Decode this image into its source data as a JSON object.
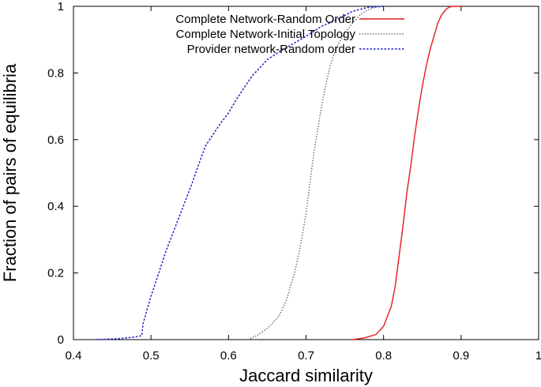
{
  "chart_data": {
    "type": "line",
    "xlabel": "Jaccard similarity",
    "ylabel": "Fraction of pairs of equilibria",
    "xlim": [
      0.4,
      1.0
    ],
    "ylim": [
      0,
      1
    ],
    "xticks": [
      0.4,
      0.5,
      0.6,
      0.7,
      0.8,
      0.9,
      1.0
    ],
    "yticks": [
      0,
      0.2,
      0.4,
      0.6,
      0.8,
      1.0
    ],
    "xtick_labels": [
      "0.4",
      "0.5",
      "0.6",
      "0.7",
      "0.8",
      "0.9",
      "1"
    ],
    "ytick_labels": [
      "0",
      "0.2",
      "0.4",
      "0.6",
      "0.8",
      "1"
    ],
    "grid": false,
    "legend_position": "top-right",
    "series": [
      {
        "name": "Complete Network-Random Order",
        "color": "#e41a1c",
        "style": "solid",
        "x": [
          0.76,
          0.775,
          0.79,
          0.8,
          0.81,
          0.815,
          0.82,
          0.825,
          0.83,
          0.835,
          0.84,
          0.845,
          0.85,
          0.855,
          0.86,
          0.865,
          0.87,
          0.875,
          0.88,
          0.885,
          0.89,
          0.9
        ],
        "y": [
          0.0,
          0.005,
          0.015,
          0.04,
          0.1,
          0.16,
          0.25,
          0.34,
          0.44,
          0.52,
          0.61,
          0.69,
          0.76,
          0.82,
          0.87,
          0.91,
          0.95,
          0.975,
          0.99,
          0.998,
          1.0,
          1.0
        ]
      },
      {
        "name": "Complete Network-Initial Topology",
        "color": "#555555",
        "style": "dotted",
        "x": [
          0.625,
          0.635,
          0.645,
          0.655,
          0.665,
          0.675,
          0.685,
          0.69,
          0.695,
          0.7,
          0.705,
          0.71,
          0.715,
          0.72,
          0.725,
          0.73,
          0.735,
          0.74,
          0.75,
          0.76,
          0.77,
          0.78,
          0.79,
          0.8
        ],
        "y": [
          0.0,
          0.01,
          0.025,
          0.045,
          0.07,
          0.12,
          0.2,
          0.25,
          0.31,
          0.38,
          0.47,
          0.56,
          0.63,
          0.7,
          0.76,
          0.81,
          0.85,
          0.88,
          0.92,
          0.95,
          0.975,
          0.99,
          0.998,
          1.0
        ]
      },
      {
        "name": "Provider network-Random order",
        "color": "#1f1fcf",
        "style": "dashed",
        "x": [
          0.43,
          0.46,
          0.48,
          0.488,
          0.49,
          0.5,
          0.51,
          0.52,
          0.535,
          0.55,
          0.57,
          0.59,
          0.6,
          0.61,
          0.63,
          0.65,
          0.67,
          0.7,
          0.72,
          0.74,
          0.76,
          0.78,
          0.8
        ],
        "y": [
          0.0,
          0.003,
          0.008,
          0.012,
          0.05,
          0.13,
          0.2,
          0.27,
          0.36,
          0.45,
          0.58,
          0.65,
          0.68,
          0.72,
          0.79,
          0.84,
          0.87,
          0.91,
          0.94,
          0.96,
          0.985,
          0.997,
          1.0
        ]
      }
    ]
  }
}
